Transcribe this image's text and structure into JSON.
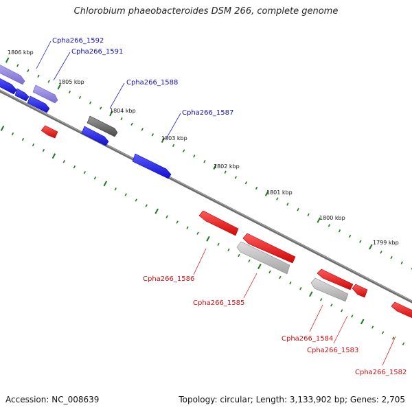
{
  "title": "Chlorobium phaeobacteroides DSM 266, complete genome",
  "footer": {
    "accession": "Accession: NC_008639",
    "stats": "Topology: circular; Length: 3,133,902 bp; Genes: 2,705"
  },
  "colors": {
    "forward_gene": "#1a1aee",
    "forward_faded": "#8f83d8",
    "reverse_gene": "#ee1111",
    "rna_gene": "#6f6f6f",
    "gray_gene": "#b9b9b9",
    "tick": "#1b7a1b",
    "backbone": "#7a7a7a",
    "label_forward": "#1010c0",
    "label_reverse": "#d01010"
  },
  "kbp_labels": [
    "1806 kbp",
    "1805 kbp",
    "1804 kbp",
    "1803 kbp",
    "1802 kbp",
    "1801 kbp",
    "1800 kbp",
    "1799 kbp"
  ],
  "gene_labels": {
    "forward": [
      "Cpha266_1592",
      "Cpha266_1591",
      "Cpha266_1588",
      "Cpha266_1587"
    ],
    "reverse": [
      "Cpha266_1586",
      "Cpha266_1585",
      "Cpha266_1584",
      "Cpha266_1583",
      "Cpha266_1582"
    ]
  }
}
